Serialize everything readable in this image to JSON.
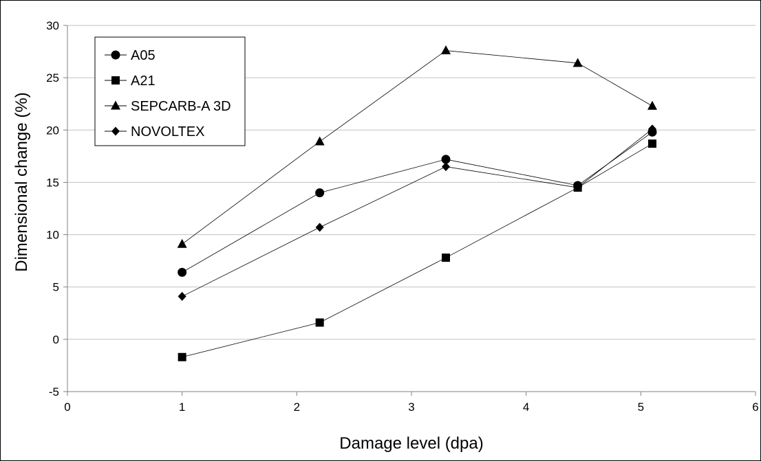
{
  "chart_data": {
    "type": "line",
    "title": "",
    "xlabel": "Damage level (dpa)",
    "ylabel": "Dimensional change (%)",
    "xlim": [
      0,
      6
    ],
    "ylim": [
      -5,
      30
    ],
    "xticks": [
      0,
      1,
      2,
      3,
      4,
      5,
      6
    ],
    "yticks": [
      -5,
      0,
      5,
      10,
      15,
      20,
      25,
      30
    ],
    "grid": "horizontal",
    "legend_position": "top-left",
    "line_color": "#000000",
    "series": [
      {
        "name": "A05",
        "marker": "circle",
        "x": [
          1.0,
          2.2,
          3.3,
          4.45,
          5.1
        ],
        "y": [
          6.4,
          14.0,
          17.2,
          14.7,
          19.8
        ]
      },
      {
        "name": "A21",
        "marker": "square",
        "x": [
          1.0,
          2.2,
          3.3,
          4.45,
          5.1
        ],
        "y": [
          -1.7,
          1.6,
          7.8,
          14.5,
          18.7
        ]
      },
      {
        "name": "SEPCARB-A 3D",
        "marker": "triangle",
        "x": [
          1.0,
          2.2,
          3.3,
          4.45,
          5.1
        ],
        "y": [
          9.1,
          18.9,
          27.6,
          26.4,
          22.3
        ]
      },
      {
        "name": "NOVOLTEX",
        "marker": "diamond",
        "x": [
          1.0,
          2.2,
          3.3,
          4.45,
          5.1
        ],
        "y": [
          4.1,
          10.7,
          16.5,
          14.5,
          20.1
        ]
      }
    ]
  }
}
